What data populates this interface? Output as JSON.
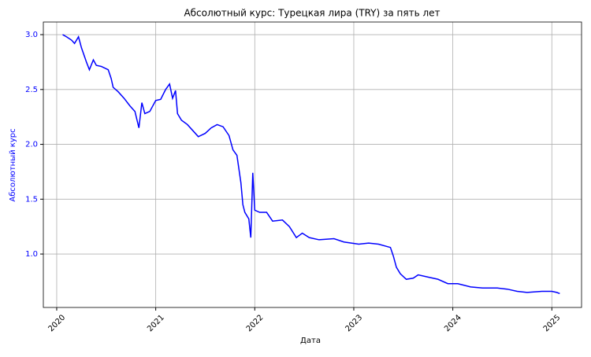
{
  "chart_data": {
    "type": "line",
    "title": "Абсолютный курс: Турецкая лира (TRY) за пять лет",
    "xlabel": "Дата",
    "ylabel": "Абсолютный курс",
    "x": [
      2020.06,
      2020.1,
      2020.15,
      2020.18,
      2020.22,
      2020.25,
      2020.3,
      2020.33,
      2020.37,
      2020.4,
      2020.45,
      2020.52,
      2020.55,
      2020.57,
      2020.62,
      2020.68,
      2020.74,
      2020.79,
      2020.83,
      2020.86,
      2020.89,
      2020.94,
      2021.0,
      2021.05,
      2021.1,
      2021.14,
      2021.17,
      2021.2,
      2021.22,
      2021.26,
      2021.32,
      2021.38,
      2021.43,
      2021.5,
      2021.56,
      2021.62,
      2021.68,
      2021.74,
      2021.78,
      2021.82,
      2021.86,
      2021.88,
      2021.9,
      2021.94,
      2021.96,
      2021.98,
      2022.0,
      2022.05,
      2022.12,
      2022.18,
      2022.28,
      2022.35,
      2022.42,
      2022.48,
      2022.55,
      2022.65,
      2022.8,
      2022.9,
      2023.05,
      2023.15,
      2023.25,
      2023.37,
      2023.4,
      2023.43,
      2023.47,
      2023.53,
      2023.6,
      2023.65,
      2023.75,
      2023.85,
      2023.95,
      2024.05,
      2024.18,
      2024.3,
      2024.45,
      2024.55,
      2024.65,
      2024.75,
      2024.9,
      2025.0,
      2025.05,
      2025.08
    ],
    "series": [
      {
        "name": "TRY",
        "color": "#0000ff",
        "values": [
          3.0,
          2.98,
          2.95,
          2.92,
          2.98,
          2.88,
          2.75,
          2.68,
          2.77,
          2.72,
          2.71,
          2.68,
          2.6,
          2.52,
          2.48,
          2.42,
          2.35,
          2.3,
          2.15,
          2.38,
          2.28,
          2.3,
          2.4,
          2.41,
          2.5,
          2.55,
          2.42,
          2.49,
          2.28,
          2.22,
          2.18,
          2.12,
          2.07,
          2.1,
          2.15,
          2.18,
          2.16,
          2.08,
          1.95,
          1.9,
          1.65,
          1.45,
          1.38,
          1.32,
          1.15,
          1.74,
          1.4,
          1.38,
          1.38,
          1.3,
          1.31,
          1.25,
          1.15,
          1.19,
          1.15,
          1.13,
          1.14,
          1.11,
          1.09,
          1.1,
          1.09,
          1.06,
          0.98,
          0.88,
          0.82,
          0.77,
          0.78,
          0.81,
          0.79,
          0.77,
          0.73,
          0.73,
          0.7,
          0.69,
          0.69,
          0.68,
          0.66,
          0.65,
          0.66,
          0.66,
          0.65,
          0.64
        ]
      }
    ],
    "xlim": [
      2019.865,
      2025.3
    ],
    "xticks": [
      2020,
      2021,
      2022,
      2023,
      2024,
      2025
    ],
    "ylim": [
      0.513,
      3.115
    ],
    "yticks": [
      {
        "value": 1.0,
        "label": "1.0"
      },
      1.5,
      {
        "value": 2.0,
        "label": "2.0"
      },
      2.5,
      {
        "value": 3.0,
        "label": "3.0"
      }
    ],
    "grid": true,
    "axis_color": "#0000ff"
  }
}
